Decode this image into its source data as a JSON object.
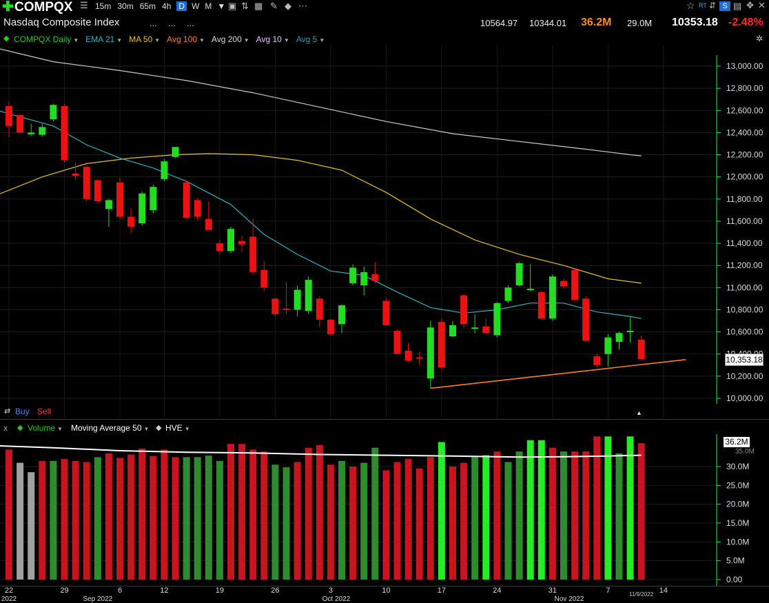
{
  "toolbar": {
    "add_icon": "plus-icon",
    "symbol": "COMPQX",
    "list_icon": "list-icon",
    "timeframes": [
      "15m",
      "30m",
      "65m",
      "4h",
      "D",
      "W",
      "M"
    ],
    "active_timeframe": "D",
    "right_icons": [
      "star-icon",
      "rt-icon",
      "s-icon",
      "save-icon",
      "move-icon",
      "close-icon"
    ],
    "rt_label": "RT",
    "s_label": "S"
  },
  "header": {
    "name": "Nasdaq Composite Index",
    "dots": [
      "...",
      "...",
      "..."
    ],
    "high": "10564.97",
    "low": "10344.01",
    "volume": "36.2M",
    "avg_volume": "29.0M",
    "last": "10353.18",
    "change_pct": "-2.48%"
  },
  "legend": {
    "items": [
      {
        "label": "COMPQX Daily",
        "color": "#22cc22"
      },
      {
        "label": "EMA 21",
        "color": "#2bb5bf"
      },
      {
        "label": "MA 50",
        "color": "#e6c228"
      },
      {
        "label": "Avg 100",
        "color": "#ff7f27"
      },
      {
        "label": "Avg 200",
        "color": "#dddddd"
      },
      {
        "label": "Avg 10",
        "color": "#e8c8ff"
      },
      {
        "label": "Avg 5",
        "color": "#3b9aa8"
      }
    ]
  },
  "buy_label": "Buy",
  "sell_label": "Sell",
  "volume_legend": {
    "close_x": "x",
    "items": [
      "Volume",
      "Moving Average 50",
      "HVE"
    ]
  },
  "chart_data": [
    {
      "type": "candlestick",
      "title": "COMPQX Daily",
      "ylim": [
        9950,
        13100
      ],
      "yticks": [
        10000,
        10200,
        10400,
        10600,
        10800,
        11000,
        11200,
        11400,
        11600,
        11800,
        12000,
        12200,
        12400,
        12600,
        12800,
        13000
      ],
      "ytick_labels": [
        "10,000.00",
        "10,200.00",
        "10,400.00",
        "10,600.00",
        "10,800.00",
        "11,000.00",
        "11,200.00",
        "11,400.00",
        "11,600.00",
        "11,800.00",
        "12,000.00",
        "12,200.00",
        "12,400.00",
        "12,600.00",
        "12,800.00",
        "13,000.00"
      ],
      "last_price_label": "10,353.18",
      "grid": true,
      "colors": {
        "up": "#22dd22",
        "down": "#ee1111",
        "ema21": "#2bb5bf",
        "ma50": "#e6c228",
        "ma200": "#cccccc",
        "trendline": "#ff7f27"
      },
      "x_ticks": [
        {
          "label": "22",
          "i": 0
        },
        {
          "label": "29",
          "i": 5
        },
        {
          "label": "6",
          "i": 10
        },
        {
          "label": "12",
          "i": 14
        },
        {
          "label": "19",
          "i": 19
        },
        {
          "label": "26",
          "i": 24
        },
        {
          "label": "3",
          "i": 29
        },
        {
          "label": "10",
          "i": 34
        },
        {
          "label": "17",
          "i": 39
        },
        {
          "label": "24",
          "i": 44
        },
        {
          "label": "31",
          "i": 49
        },
        {
          "label": "7",
          "i": 54
        },
        {
          "label": "14",
          "i": 59
        }
      ],
      "month_labels": [
        {
          "label": "2022",
          "i": 0
        },
        {
          "label": "Sep 2022",
          "i": 8
        },
        {
          "label": "Oct 2022",
          "i": 29.5
        },
        {
          "label": "Nov 2022",
          "i": 50.5
        }
      ],
      "date_marker": {
        "label": "11/9/2022",
        "i": 56
      },
      "candles": [
        {
          "o": 12640,
          "h": 12680,
          "l": 12360,
          "c": 12460,
          "d": 0
        },
        {
          "o": 12560,
          "h": 12560,
          "l": 12420,
          "c": 12400,
          "d": 1
        },
        {
          "o": 12385,
          "h": 12480,
          "l": 12370,
          "c": 12400,
          "d": 2
        },
        {
          "o": 12380,
          "h": 12480,
          "l": 12360,
          "c": 12450,
          "d": 3
        },
        {
          "o": 12520,
          "h": 12660,
          "l": 12500,
          "c": 12650,
          "d": 4
        },
        {
          "o": 12640,
          "h": 12660,
          "l": 12130,
          "c": 12150,
          "d": 5
        },
        {
          "o": 12030,
          "h": 12130,
          "l": 11970,
          "c": 12010,
          "d": 6
        },
        {
          "o": 12090,
          "h": 12100,
          "l": 11780,
          "c": 11800,
          "d": 7
        },
        {
          "o": 11970,
          "h": 11980,
          "l": 11760,
          "c": 11780,
          "d": 8
        },
        {
          "o": 11710,
          "h": 11800,
          "l": 11550,
          "c": 11790,
          "d": 9
        },
        {
          "o": 11950,
          "h": 11990,
          "l": 11620,
          "c": 11640,
          "d": 10
        },
        {
          "o": 11640,
          "h": 11720,
          "l": 11490,
          "c": 11550,
          "d": 11
        },
        {
          "o": 11580,
          "h": 11870,
          "l": 11560,
          "c": 11850,
          "d": 12
        },
        {
          "o": 11700,
          "h": 11930,
          "l": 11670,
          "c": 11910,
          "d": 13
        },
        {
          "o": 11980,
          "h": 12160,
          "l": 11960,
          "c": 12140,
          "d": 14
        },
        {
          "o": 12180,
          "h": 12270,
          "l": 12170,
          "c": 12270,
          "d": 15
        },
        {
          "o": 11950,
          "h": 11970,
          "l": 11620,
          "c": 11630,
          "d": 16
        },
        {
          "o": 11790,
          "h": 11810,
          "l": 11610,
          "c": 11640,
          "d": 17
        },
        {
          "o": 11620,
          "h": 11780,
          "l": 11520,
          "c": 11520,
          "d": 18
        },
        {
          "o": 11400,
          "h": 11430,
          "l": 11300,
          "c": 11330,
          "d": 19
        },
        {
          "o": 11330,
          "h": 11550,
          "l": 11310,
          "c": 11530,
          "d": 20
        },
        {
          "o": 11420,
          "h": 11470,
          "l": 11320,
          "c": 11390,
          "d": 21
        },
        {
          "o": 11460,
          "h": 11620,
          "l": 11120,
          "c": 11140,
          "d": 22
        },
        {
          "o": 11160,
          "h": 11240,
          "l": 10970,
          "c": 11000,
          "d": 23
        },
        {
          "o": 10900,
          "h": 10910,
          "l": 10740,
          "c": 10760,
          "d": 24
        },
        {
          "o": 10810,
          "h": 11050,
          "l": 10760,
          "c": 10800,
          "d": 25
        },
        {
          "o": 10800,
          "h": 11020,
          "l": 10740,
          "c": 10980,
          "d": 26
        },
        {
          "o": 10790,
          "h": 11100,
          "l": 10760,
          "c": 11070,
          "d": 27
        },
        {
          "o": 10900,
          "h": 10920,
          "l": 10640,
          "c": 10710,
          "d": 28
        },
        {
          "o": 10710,
          "h": 10720,
          "l": 10570,
          "c": 10580,
          "d": 29
        },
        {
          "o": 10670,
          "h": 10850,
          "l": 10590,
          "c": 10840,
          "d": 30
        },
        {
          "o": 11040,
          "h": 11210,
          "l": 11020,
          "c": 11180,
          "d": 31
        },
        {
          "o": 11020,
          "h": 11190,
          "l": 10930,
          "c": 11140,
          "d": 32
        },
        {
          "o": 11120,
          "h": 11230,
          "l": 11040,
          "c": 11060,
          "d": 33
        },
        {
          "o": 10880,
          "h": 10900,
          "l": 10660,
          "c": 10660,
          "d": 34
        },
        {
          "o": 10610,
          "h": 10620,
          "l": 10400,
          "c": 10400,
          "d": 35
        },
        {
          "o": 10430,
          "h": 10500,
          "l": 10330,
          "c": 10340,
          "d": 36
        },
        {
          "o": 10370,
          "h": 10420,
          "l": 10300,
          "c": 10360,
          "d": 37
        },
        {
          "o": 10180,
          "h": 10700,
          "l": 10090,
          "c": 10640,
          "d": 38
        },
        {
          "o": 10690,
          "h": 10720,
          "l": 10260,
          "c": 10280,
          "d": 39
        },
        {
          "o": 10560,
          "h": 10700,
          "l": 10550,
          "c": 10660,
          "d": 40
        },
        {
          "o": 10930,
          "h": 10940,
          "l": 10640,
          "c": 10670,
          "d": 41
        },
        {
          "o": 10640,
          "h": 10760,
          "l": 10590,
          "c": 10640,
          "d": 42
        },
        {
          "o": 10650,
          "h": 10720,
          "l": 10580,
          "c": 10590,
          "d": 43
        },
        {
          "o": 10570,
          "h": 10870,
          "l": 10550,
          "c": 10860,
          "d": 44
        },
        {
          "o": 10880,
          "h": 11020,
          "l": 10860,
          "c": 11000,
          "d": 45
        },
        {
          "o": 11020,
          "h": 11230,
          "l": 11010,
          "c": 11220,
          "d": 46
        },
        {
          "o": 10990,
          "h": 11210,
          "l": 10970,
          "c": 10990,
          "d": 47
        },
        {
          "o": 10960,
          "h": 10970,
          "l": 10710,
          "c": 10720,
          "d": 48
        },
        {
          "o": 10720,
          "h": 11120,
          "l": 10700,
          "c": 11100,
          "d": 49
        },
        {
          "o": 11060,
          "h": 11080,
          "l": 10990,
          "c": 11010,
          "d": 50
        },
        {
          "o": 11160,
          "h": 11170,
          "l": 10880,
          "c": 10890,
          "d": 51
        },
        {
          "o": 10900,
          "h": 10920,
          "l": 10510,
          "c": 10520,
          "d": 52
        },
        {
          "o": 10380,
          "h": 10400,
          "l": 10280,
          "c": 10300,
          "d": 53
        },
        {
          "o": 10400,
          "h": 10580,
          "l": 10290,
          "c": 10550,
          "d": 54
        },
        {
          "o": 10510,
          "h": 10600,
          "l": 10440,
          "c": 10590,
          "d": 55
        },
        {
          "o": 10600,
          "h": 10740,
          "l": 10500,
          "c": 10610,
          "d": 56
        },
        {
          "o": 10530,
          "h": 10565,
          "l": 10344,
          "c": 10353,
          "d": 57
        }
      ],
      "ema21": [
        [
          -1,
          12600
        ],
        [
          0,
          12570
        ],
        [
          4,
          12460
        ],
        [
          7,
          12290
        ],
        [
          10,
          12170
        ],
        [
          13,
          12080
        ],
        [
          16,
          11960
        ],
        [
          20,
          11750
        ],
        [
          23,
          11480
        ],
        [
          26,
          11300
        ],
        [
          29,
          11150
        ],
        [
          32,
          11110
        ],
        [
          35,
          10960
        ],
        [
          38,
          10820
        ],
        [
          41,
          10770
        ],
        [
          44,
          10800
        ],
        [
          47,
          10860
        ],
        [
          50,
          10860
        ],
        [
          53,
          10780
        ],
        [
          56,
          10740
        ],
        [
          57,
          10720
        ]
      ],
      "ma50": [
        [
          -1,
          11840
        ],
        [
          3,
          12000
        ],
        [
          7,
          12120
        ],
        [
          11,
          12170
        ],
        [
          15,
          12200
        ],
        [
          18,
          12210
        ],
        [
          22,
          12200
        ],
        [
          26,
          12150
        ],
        [
          30,
          12060
        ],
        [
          34,
          11860
        ],
        [
          38,
          11620
        ],
        [
          42,
          11430
        ],
        [
          46,
          11300
        ],
        [
          50,
          11200
        ],
        [
          54,
          11080
        ],
        [
          57,
          11040
        ]
      ],
      "ma200": [
        [
          -1,
          13160
        ],
        [
          4,
          13040
        ],
        [
          10,
          12960
        ],
        [
          16,
          12870
        ],
        [
          22,
          12760
        ],
        [
          28,
          12630
        ],
        [
          34,
          12500
        ],
        [
          40,
          12390
        ],
        [
          46,
          12320
        ],
        [
          52,
          12250
        ],
        [
          56,
          12200
        ],
        [
          57,
          12190
        ]
      ],
      "trendline": [
        [
          38,
          10090
        ],
        [
          61,
          10350
        ]
      ]
    },
    {
      "type": "bar",
      "title": "Volume",
      "ylim": [
        0,
        38
      ],
      "yticks": [
        0,
        5,
        10,
        15,
        20,
        25,
        30
      ],
      "ytick_labels": [
        "0.00",
        "5.0M",
        "10.0M",
        "15.0M",
        "20.0M",
        "25.0M",
        "30.0M"
      ],
      "last_label": "36.2M",
      "overlay_label": "35.0M",
      "volumes": [
        {
          "v": 34.5,
          "c": "red"
        },
        {
          "v": 31,
          "c": "grey"
        },
        {
          "v": 28.5,
          "c": "grey"
        },
        {
          "v": 31.5,
          "c": "red"
        },
        {
          "v": 31.5,
          "c": "dkgreen"
        },
        {
          "v": 32,
          "c": "red"
        },
        {
          "v": 31.5,
          "c": "red"
        },
        {
          "v": 31.2,
          "c": "red"
        },
        {
          "v": 32.5,
          "c": "dkgreen"
        },
        {
          "v": 33.5,
          "c": "red"
        },
        {
          "v": 32.3,
          "c": "red"
        },
        {
          "v": 33.2,
          "c": "red"
        },
        {
          "v": 34.8,
          "c": "red"
        },
        {
          "v": 32.8,
          "c": "red"
        },
        {
          "v": 34.5,
          "c": "red"
        },
        {
          "v": 32.5,
          "c": "red"
        },
        {
          "v": 32.5,
          "c": "dkgreen"
        },
        {
          "v": 32.5,
          "c": "dkgreen"
        },
        {
          "v": 32.9,
          "c": "dkgreen"
        },
        {
          "v": 31.5,
          "c": "dkgreen"
        },
        {
          "v": 36,
          "c": "red"
        },
        {
          "v": 36,
          "c": "red"
        },
        {
          "v": 34.5,
          "c": "red"
        },
        {
          "v": 34,
          "c": "red"
        },
        {
          "v": 30.5,
          "c": "dkgreen"
        },
        {
          "v": 29.8,
          "c": "dkgreen"
        },
        {
          "v": 31.2,
          "c": "red"
        },
        {
          "v": 35,
          "c": "red"
        },
        {
          "v": 35.7,
          "c": "red"
        },
        {
          "v": 30.5,
          "c": "red"
        },
        {
          "v": 31.5,
          "c": "dkgreen"
        },
        {
          "v": 30,
          "c": "red"
        },
        {
          "v": 31,
          "c": "dkgreen"
        },
        {
          "v": 35,
          "c": "dkgreen"
        },
        {
          "v": 29,
          "c": "red"
        },
        {
          "v": 31.2,
          "c": "red"
        },
        {
          "v": 32,
          "c": "red"
        },
        {
          "v": 29.5,
          "c": "red"
        },
        {
          "v": 32.5,
          "c": "red"
        },
        {
          "v": 36.5,
          "c": "green"
        },
        {
          "v": 30,
          "c": "red"
        },
        {
          "v": 31,
          "c": "red"
        },
        {
          "v": 32.5,
          "c": "dkgreen"
        },
        {
          "v": 33,
          "c": "green"
        },
        {
          "v": 34,
          "c": "red"
        },
        {
          "v": 31.2,
          "c": "dkgreen"
        },
        {
          "v": 34,
          "c": "dkgreen"
        },
        {
          "v": 37,
          "c": "green"
        },
        {
          "v": 37,
          "c": "green"
        },
        {
          "v": 35,
          "c": "red"
        },
        {
          "v": 34,
          "c": "dkgreen"
        },
        {
          "v": 34,
          "c": "red"
        },
        {
          "v": 34,
          "c": "red"
        },
        {
          "v": 38,
          "c": "red"
        },
        {
          "v": 38,
          "c": "green"
        },
        {
          "v": 33.5,
          "c": "dkgreen"
        },
        {
          "v": 38,
          "c": "green"
        },
        {
          "v": 36.2,
          "c": "red"
        }
      ],
      "ma50": [
        [
          -1,
          35.5
        ],
        [
          4,
          35
        ],
        [
          10,
          34.2
        ],
        [
          16,
          33.8
        ],
        [
          22,
          33.6
        ],
        [
          28,
          33.2
        ],
        [
          34,
          33
        ],
        [
          40,
          32.8
        ],
        [
          46,
          32.5
        ],
        [
          50,
          32.6
        ],
        [
          54,
          32.8
        ],
        [
          57,
          33
        ]
      ]
    }
  ]
}
